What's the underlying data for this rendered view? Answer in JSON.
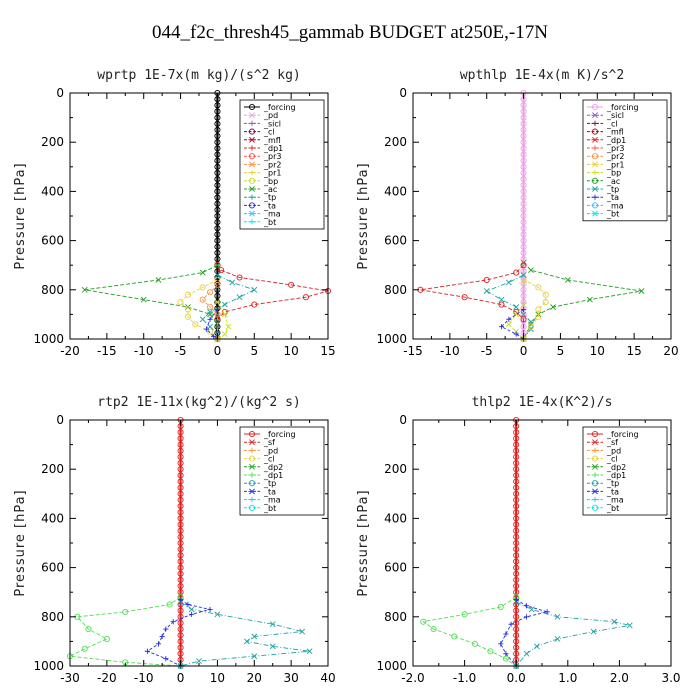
{
  "page_title": "044_f2c_thresh45_gammab  BUDGET at250E,-17N",
  "chart_data": [
    {
      "type": "line",
      "title": "wprtp   1E-7x(m kg)/(s^2 kg)",
      "ylabel": "Pressure [hPa]",
      "xlim": [
        -20,
        15
      ],
      "ylim": [
        1000,
        0
      ],
      "xticks": [
        -20,
        -15,
        -10,
        -5,
        0,
        5,
        10,
        15
      ],
      "xtick_labels": [
        "-20",
        "-15",
        "-10",
        "-5",
        "0",
        "5",
        "10",
        "15"
      ],
      "yticks": [
        0,
        200,
        400,
        600,
        800,
        1000
      ],
      "legend": [
        "_forcing",
        "_pd",
        "_sicl",
        "_cl",
        "_mfl",
        "_dp1",
        "_pr3",
        "_pr2",
        "_pr1",
        "_bp",
        "_ac",
        "_tp",
        "_ta",
        "_ma",
        "_bt"
      ],
      "legend_colors": [
        "#000000",
        "#e8a0e8",
        "#9050c8",
        "#7a0a5a",
        "#b00020",
        "#e02020",
        "#ff5040",
        "#ff9040",
        "#e8d040",
        "#c8e020",
        "#20a020",
        "#20a0a0",
        "#2030e0",
        "#30c0ff",
        "#00e8e8"
      ],
      "legend_pos": "top-right",
      "series": [
        {
          "name": "_forcing",
          "color": "#000000",
          "marker": "o",
          "dash": "",
          "values": [
            [
              0,
              0
            ],
            [
              0,
              1000
            ]
          ]
        },
        {
          "name": "_dp1",
          "color": "#e02020",
          "marker": "o",
          "dash": "4,2",
          "values": [
            [
              0,
              700
            ],
            [
              0.5,
              720
            ],
            [
              3,
              750
            ],
            [
              10,
              780
            ],
            [
              15,
              805
            ],
            [
              12,
              830
            ],
            [
              5,
              860
            ],
            [
              1,
              890
            ],
            [
              0,
              920
            ],
            [
              0,
              1000
            ]
          ]
        },
        {
          "name": "_ac",
          "color": "#20a020",
          "marker": "x",
          "dash": "4,2",
          "values": [
            [
              0,
              700
            ],
            [
              -2,
              730
            ],
            [
              -8,
              760
            ],
            [
              -18,
              800
            ],
            [
              -10,
              840
            ],
            [
              -4,
              870
            ],
            [
              -1,
              900
            ],
            [
              0,
              940
            ],
            [
              0,
              1000
            ]
          ]
        },
        {
          "name": "_tp",
          "color": "#20a0a0",
          "marker": "x",
          "dash": "5,2,1,2",
          "values": [
            [
              0,
              740
            ],
            [
              2,
              770
            ],
            [
              5,
              800
            ],
            [
              3,
              830
            ],
            [
              1,
              860
            ],
            [
              -1,
              890
            ],
            [
              -2,
              920
            ],
            [
              -1,
              950
            ],
            [
              0,
              980
            ],
            [
              0,
              1000
            ]
          ]
        },
        {
          "name": "_pr1",
          "color": "#e8d040",
          "marker": "o",
          "dash": "3,2",
          "values": [
            [
              0,
              760
            ],
            [
              -2,
              790
            ],
            [
              -4,
              820
            ],
            [
              -5,
              850
            ],
            [
              -4,
              880
            ],
            [
              -4,
              910
            ],
            [
              -3,
              940
            ],
            [
              -1,
              970
            ],
            [
              0,
              1000
            ]
          ]
        },
        {
          "name": "_pr2",
          "color": "#ff9040",
          "marker": "o",
          "dash": "3,2",
          "values": [
            [
              0,
              780
            ],
            [
              -1,
              810
            ],
            [
              -2,
              840
            ],
            [
              -1,
              870
            ],
            [
              0,
              900
            ],
            [
              0,
              1000
            ]
          ]
        },
        {
          "name": "_bp",
          "color": "#c8e020",
          "marker": "x",
          "dash": "3,2",
          "values": [
            [
              0,
              850
            ],
            [
              1,
              900
            ],
            [
              1.5,
              950
            ],
            [
              1,
              980
            ],
            [
              0,
              1000
            ]
          ]
        },
        {
          "name": "_ta",
          "color": "#2030e0",
          "marker": "+",
          "dash": "3,2",
          "values": [
            [
              0,
              880
            ],
            [
              -1,
              920
            ],
            [
              -1.5,
              960
            ],
            [
              -0.5,
              990
            ],
            [
              0,
              1000
            ]
          ]
        }
      ]
    },
    {
      "type": "line",
      "title": "wpthlp   1E-4x(m K)/s^2",
      "ylabel": "Pressure [hPa]",
      "xlim": [
        -15,
        20
      ],
      "ylim": [
        1000,
        0
      ],
      "xticks": [
        -15,
        -10,
        -5,
        0,
        5,
        10,
        15,
        20
      ],
      "xtick_labels": [
        "-15",
        "-10",
        "-5",
        "0",
        "5",
        "10",
        "15",
        "20"
      ],
      "yticks": [
        0,
        200,
        400,
        600,
        800,
        1000
      ],
      "legend": [
        "_forcing",
        "_sicl",
        "_cl",
        "_mfl",
        "_dp1",
        "_pr3",
        "_pr2",
        "_pr1",
        "_bp",
        "_ac",
        "_tp",
        "_ta",
        "_ma",
        "_bt"
      ],
      "legend_colors": [
        "#e8a0e8",
        "#9050c8",
        "#7a0a5a",
        "#b00020",
        "#e02020",
        "#ff5040",
        "#ff9040",
        "#e8d040",
        "#c8e020",
        "#20a020",
        "#20a0a0",
        "#2030e0",
        "#30c0ff",
        "#00e8e8"
      ],
      "legend_pos": "top-right",
      "series": [
        {
          "name": "_forcing",
          "color": "#e8a0e8",
          "marker": "o",
          "dash": "",
          "values": [
            [
              0,
              0
            ],
            [
              0,
              1000
            ]
          ]
        },
        {
          "name": "_ac",
          "color": "#20a020",
          "marker": "x",
          "dash": "4,2",
          "values": [
            [
              0,
              690
            ],
            [
              1,
              720
            ],
            [
              6,
              760
            ],
            [
              16,
              805
            ],
            [
              9,
              840
            ],
            [
              4,
              870
            ],
            [
              2,
              900
            ],
            [
              1,
              940
            ],
            [
              0,
              1000
            ]
          ]
        },
        {
          "name": "_dp1",
          "color": "#e02020",
          "marker": "o",
          "dash": "4,2",
          "values": [
            [
              0,
              700
            ],
            [
              -1,
              730
            ],
            [
              -5,
              760
            ],
            [
              -14,
              800
            ],
            [
              -8,
              830
            ],
            [
              -3,
              860
            ],
            [
              -1,
              890
            ],
            [
              0,
              920
            ],
            [
              0,
              1000
            ]
          ]
        },
        {
          "name": "_tp",
          "color": "#20a0a0",
          "marker": "x",
          "dash": "5,2,1,2",
          "values": [
            [
              0,
              740
            ],
            [
              -2,
              770
            ],
            [
              -5,
              805
            ],
            [
              -3,
              840
            ],
            [
              -1,
              870
            ],
            [
              0,
              900
            ],
            [
              1,
              930
            ],
            [
              1,
              960
            ],
            [
              0,
              1000
            ]
          ]
        },
        {
          "name": "_pr1",
          "color": "#e8d040",
          "marker": "o",
          "dash": "3,2",
          "values": [
            [
              0,
              760
            ],
            [
              2,
              790
            ],
            [
              3,
              820
            ],
            [
              3,
              850
            ],
            [
              2,
              880
            ],
            [
              2,
              910
            ],
            [
              1,
              950
            ],
            [
              0,
              1000
            ]
          ]
        },
        {
          "name": "_bp",
          "color": "#c8e020",
          "marker": "x",
          "dash": "3,2",
          "values": [
            [
              0,
              860
            ],
            [
              -1,
              900
            ],
            [
              -2,
              940
            ],
            [
              -1,
              970
            ],
            [
              0,
              1000
            ]
          ]
        },
        {
          "name": "_ta",
          "color": "#2030e0",
          "marker": "+",
          "dash": "3,2",
          "values": [
            [
              0,
              880
            ],
            [
              -2,
              920
            ],
            [
              -3,
              950
            ],
            [
              -1,
              980
            ],
            [
              0,
              1000
            ]
          ]
        }
      ]
    },
    {
      "type": "line",
      "title": "rtp2   1E-11x(kg^2)/(kg^2 s)",
      "ylabel": "Pressure [hPa]",
      "xlim": [
        -30,
        40
      ],
      "ylim": [
        1000,
        0
      ],
      "xticks": [
        -30,
        -20,
        -10,
        0,
        10,
        20,
        30,
        40
      ],
      "xtick_labels": [
        "-30",
        "-20",
        "-10",
        "0",
        "10",
        "20",
        "30",
        "40"
      ],
      "yticks": [
        0,
        200,
        400,
        600,
        800,
        1000
      ],
      "legend": [
        "_forcing",
        "_sf",
        "_pd",
        "_cl",
        "_dp2",
        "_dp1",
        "_tp",
        "_ta",
        "_ma",
        "_bt"
      ],
      "legend_colors": [
        "#e02020",
        "#e02020",
        "#ff9040",
        "#e8d040",
        "#20a020",
        "#50e050",
        "#20a0a0",
        "#2030e0",
        "#30c0ff",
        "#00e8e8"
      ],
      "legend_pos": "top-right",
      "series": [
        {
          "name": "_forcing",
          "color": "#e02020",
          "marker": "o",
          "dash": "",
          "values": [
            [
              0,
              0
            ],
            [
              0,
              1000
            ]
          ]
        },
        {
          "name": "_dp1",
          "color": "#50e050",
          "marker": "o",
          "dash": "4,2",
          "values": [
            [
              0,
              720
            ],
            [
              -3,
              750
            ],
            [
              -15,
              780
            ],
            [
              -28,
              800
            ],
            [
              -25,
              850
            ],
            [
              -20,
              890
            ],
            [
              -26,
              930
            ],
            [
              -30,
              960
            ],
            [
              -15,
              985
            ],
            [
              0,
              1000
            ]
          ]
        },
        {
          "name": "_tp",
          "color": "#20a0a0",
          "marker": "x",
          "dash": "5,2,1,2",
          "values": [
            [
              0,
              740
            ],
            [
              3,
              770
            ],
            [
              10,
              790
            ],
            [
              25,
              830
            ],
            [
              33,
              860
            ],
            [
              20,
              880
            ],
            [
              18,
              900
            ],
            [
              25,
              920
            ],
            [
              35,
              940
            ],
            [
              20,
              960
            ],
            [
              5,
              980
            ],
            [
              0,
              1000
            ]
          ]
        },
        {
          "name": "_ta",
          "color": "#2030e0",
          "marker": "+",
          "dash": "3,2",
          "values": [
            [
              0,
              730
            ],
            [
              2,
              750
            ],
            [
              8,
              770
            ],
            [
              3,
              790
            ],
            [
              -2,
              820
            ],
            [
              -4,
              850
            ],
            [
              -5,
              880
            ],
            [
              -6,
              910
            ],
            [
              -9,
              940
            ],
            [
              -4,
              970
            ],
            [
              0,
              1000
            ]
          ]
        }
      ]
    },
    {
      "type": "line",
      "title": "thlp2   1E-4x(K^2)/s",
      "ylabel": "Pressure [hPa]",
      "xlim": [
        -2.0,
        3.0
      ],
      "ylim": [
        1000,
        0
      ],
      "xticks": [
        -2.0,
        -1.0,
        0.0,
        1.0,
        2.0,
        3.0
      ],
      "xtick_labels": [
        "-2.0",
        "-1.0",
        "0.0",
        "1.0",
        "2.0",
        "3.0"
      ],
      "yticks": [
        0,
        200,
        400,
        600,
        800,
        1000
      ],
      "legend": [
        "_forcing",
        "_sf",
        "_pd",
        "_cl",
        "_dp2",
        "_dp1",
        "_tp",
        "_ta",
        "_ma",
        "_bt"
      ],
      "legend_colors": [
        "#e02020",
        "#e02020",
        "#ff9040",
        "#e8d040",
        "#20a020",
        "#50e050",
        "#20a0a0",
        "#2030e0",
        "#30c0ff",
        "#00e8e8"
      ],
      "legend_pos": "top-right",
      "series": [
        {
          "name": "_forcing",
          "color": "#e02020",
          "marker": "o",
          "dash": "",
          "values": [
            [
              0,
              0
            ],
            [
              0,
              1000
            ]
          ]
        },
        {
          "name": "_dp1",
          "color": "#50e050",
          "marker": "o",
          "dash": "4,2",
          "values": [
            [
              0,
              720
            ],
            [
              -0.3,
              760
            ],
            [
              -1.0,
              790
            ],
            [
              -1.8,
              820
            ],
            [
              -1.6,
              850
            ],
            [
              -1.2,
              880
            ],
            [
              -0.8,
              910
            ],
            [
              -0.5,
              940
            ],
            [
              -0.2,
              970
            ],
            [
              0,
              1000
            ]
          ]
        },
        {
          "name": "_tp",
          "color": "#20a0a0",
          "marker": "x",
          "dash": "5,2,1,2",
          "values": [
            [
              0,
              740
            ],
            [
              0.3,
              770
            ],
            [
              0.8,
              800
            ],
            [
              1.9,
              820
            ],
            [
              2.2,
              835
            ],
            [
              1.5,
              860
            ],
            [
              0.8,
              890
            ],
            [
              0.4,
              920
            ],
            [
              0.2,
              950
            ],
            [
              0,
              1000
            ]
          ]
        },
        {
          "name": "_ta",
          "color": "#2030e0",
          "marker": "+",
          "dash": "3,2",
          "values": [
            [
              0,
              730
            ],
            [
              0.2,
              755
            ],
            [
              0.6,
              780
            ],
            [
              0.2,
              800
            ],
            [
              -0.1,
              830
            ],
            [
              -0.2,
              870
            ],
            [
              -0.3,
              910
            ],
            [
              -0.2,
              950
            ],
            [
              0,
              1000
            ]
          ]
        }
      ]
    }
  ]
}
